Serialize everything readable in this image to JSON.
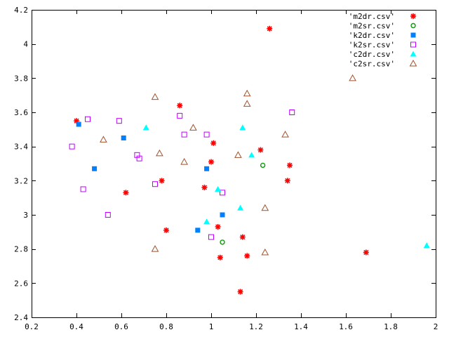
{
  "chart_data": {
    "type": "scatter",
    "title": "",
    "xlabel": "",
    "ylabel": "",
    "xlim": [
      0.2,
      2
    ],
    "ylim": [
      2.4,
      4.2
    ],
    "grid": false,
    "legend_position": "top-right",
    "x_ticks": [
      "0.2",
      "0.4",
      "0.6",
      "0.8",
      "1",
      "1.2",
      "1.4",
      "1.6",
      "1.8",
      "2"
    ],
    "y_ticks": [
      "2.4",
      "2.6",
      "2.8",
      "3",
      "3.2",
      "3.4",
      "3.6",
      "3.8",
      "4",
      "4.2"
    ],
    "series": [
      {
        "name": "'m2dr.csv'",
        "marker": "star",
        "color": "#ff0000",
        "points": [
          [
            0.4,
            3.55
          ],
          [
            0.62,
            3.13
          ],
          [
            0.78,
            3.2
          ],
          [
            0.8,
            2.91
          ],
          [
            0.86,
            3.64
          ],
          [
            0.97,
            3.16
          ],
          [
            1.0,
            3.31
          ],
          [
            1.01,
            3.42
          ],
          [
            1.03,
            2.93
          ],
          [
            1.04,
            2.75
          ],
          [
            1.13,
            2.55
          ],
          [
            1.14,
            2.87
          ],
          [
            1.16,
            2.76
          ],
          [
            1.22,
            3.38
          ],
          [
            1.26,
            4.09
          ],
          [
            1.34,
            3.2
          ],
          [
            1.35,
            3.29
          ],
          [
            1.69,
            2.78
          ]
        ]
      },
      {
        "name": "'m2sr.csv'",
        "marker": "open-circle",
        "color": "#00a000",
        "points": [
          [
            1.05,
            2.84
          ],
          [
            1.23,
            3.29
          ]
        ]
      },
      {
        "name": "'k2dr.csv'",
        "marker": "filled-square",
        "color": "#0080ff",
        "points": [
          [
            0.41,
            3.53
          ],
          [
            0.48,
            3.27
          ],
          [
            0.61,
            3.45
          ],
          [
            0.94,
            2.91
          ],
          [
            0.98,
            3.27
          ],
          [
            1.05,
            3.0
          ]
        ]
      },
      {
        "name": "'k2sr.csv'",
        "marker": "open-square",
        "color": "#c000ff",
        "points": [
          [
            0.38,
            3.4
          ],
          [
            0.43,
            3.15
          ],
          [
            0.45,
            3.56
          ],
          [
            0.54,
            3.0
          ],
          [
            0.59,
            3.55
          ],
          [
            0.67,
            3.35
          ],
          [
            0.68,
            3.33
          ],
          [
            0.75,
            3.18
          ],
          [
            0.86,
            3.58
          ],
          [
            0.88,
            3.47
          ],
          [
            0.98,
            3.47
          ],
          [
            1.0,
            2.87
          ],
          [
            1.05,
            3.13
          ],
          [
            1.36,
            3.6
          ]
        ]
      },
      {
        "name": "'c2dr.csv'",
        "marker": "filled-triangle",
        "color": "#00ffff",
        "points": [
          [
            0.71,
            3.51
          ],
          [
            0.98,
            2.96
          ],
          [
            1.03,
            3.15
          ],
          [
            1.13,
            3.04
          ],
          [
            1.14,
            3.51
          ],
          [
            1.18,
            3.35
          ],
          [
            1.96,
            2.82
          ]
        ]
      },
      {
        "name": "'c2sr.csv'",
        "marker": "open-triangle",
        "color": "#a0522d",
        "points": [
          [
            0.52,
            3.44
          ],
          [
            0.75,
            3.69
          ],
          [
            0.75,
            2.8
          ],
          [
            0.77,
            3.36
          ],
          [
            0.88,
            3.31
          ],
          [
            0.92,
            3.51
          ],
          [
            1.12,
            3.35
          ],
          [
            1.16,
            3.71
          ],
          [
            1.16,
            3.65
          ],
          [
            1.24,
            3.04
          ],
          [
            1.24,
            2.78
          ],
          [
            1.33,
            3.47
          ],
          [
            1.63,
            3.8
          ]
        ]
      }
    ]
  }
}
